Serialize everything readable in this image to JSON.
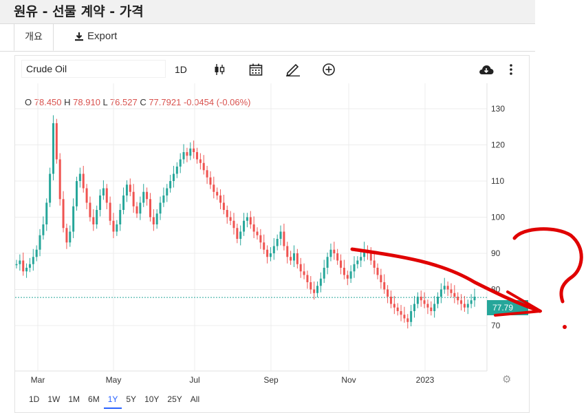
{
  "page": {
    "title": "원유 - 선물 계약 - 가격"
  },
  "tabs": {
    "overview": "개요",
    "export": "Export"
  },
  "toolbar": {
    "symbol": "Crude Oil",
    "interval": "1D",
    "icons": [
      "candlestick-icon",
      "calendar-icon",
      "pencil-icon",
      "add-circle-icon",
      "cloud-download-icon",
      "more-vert-icon"
    ]
  },
  "ohlc": {
    "o_label": "O",
    "o": "78.450",
    "h_label": "H",
    "h": "78.910",
    "l_label": "L",
    "l": "76.527",
    "c_label": "C",
    "c": "77.7921",
    "change": "-0.0454 (-0.06%)"
  },
  "price_badge": "77.79",
  "range_buttons": [
    "1D",
    "1W",
    "1M",
    "6M",
    "1Y",
    "5Y",
    "10Y",
    "25Y",
    "All"
  ],
  "active_range": "1Y",
  "colors": {
    "up": "#26a69a",
    "down": "#ef5350",
    "accent": "#2962ff",
    "annotation": "#e00000"
  },
  "chart_data": {
    "type": "candlestick",
    "y_ticks": [
      70,
      80,
      90,
      100,
      110,
      120,
      130
    ],
    "x_tick_labels": [
      "Mar",
      "May",
      "Jul",
      "Sep",
      "Nov",
      "2023"
    ],
    "ylim": [
      60,
      134
    ],
    "last_price": 77.79,
    "series": [
      {
        "values": [
          87,
          88,
          85,
          86,
          87,
          89,
          91,
          95,
          98,
          104,
          112,
          126,
          116,
          105,
          97,
          93,
          96,
          103,
          110,
          112,
          108,
          104,
          100,
          98,
          102,
          106,
          108,
          104,
          99,
          96,
          98,
          102,
          106,
          109,
          107,
          103,
          101,
          104,
          107,
          105,
          100,
          98,
          101,
          104,
          106,
          108,
          110,
          112,
          114,
          116,
          118,
          117,
          119,
          118,
          116,
          115,
          113,
          111,
          109,
          107,
          106,
          104,
          102,
          100,
          99,
          97,
          94,
          96,
          99,
          100,
          98,
          96,
          95,
          93,
          91,
          89,
          90,
          92,
          94,
          96,
          92,
          89,
          88,
          90,
          87,
          85,
          84,
          82,
          80,
          79,
          81,
          83,
          86,
          89,
          91,
          90,
          88,
          86,
          84,
          83,
          85,
          87,
          88,
          89,
          91,
          90,
          88,
          86,
          84,
          82,
          80,
          78,
          76,
          75,
          74,
          73,
          72,
          71,
          74,
          76,
          78,
          77,
          76,
          75,
          74,
          76,
          78,
          80,
          81,
          80,
          79,
          78,
          77,
          76,
          75,
          76,
          77,
          78
        ]
      }
    ]
  }
}
